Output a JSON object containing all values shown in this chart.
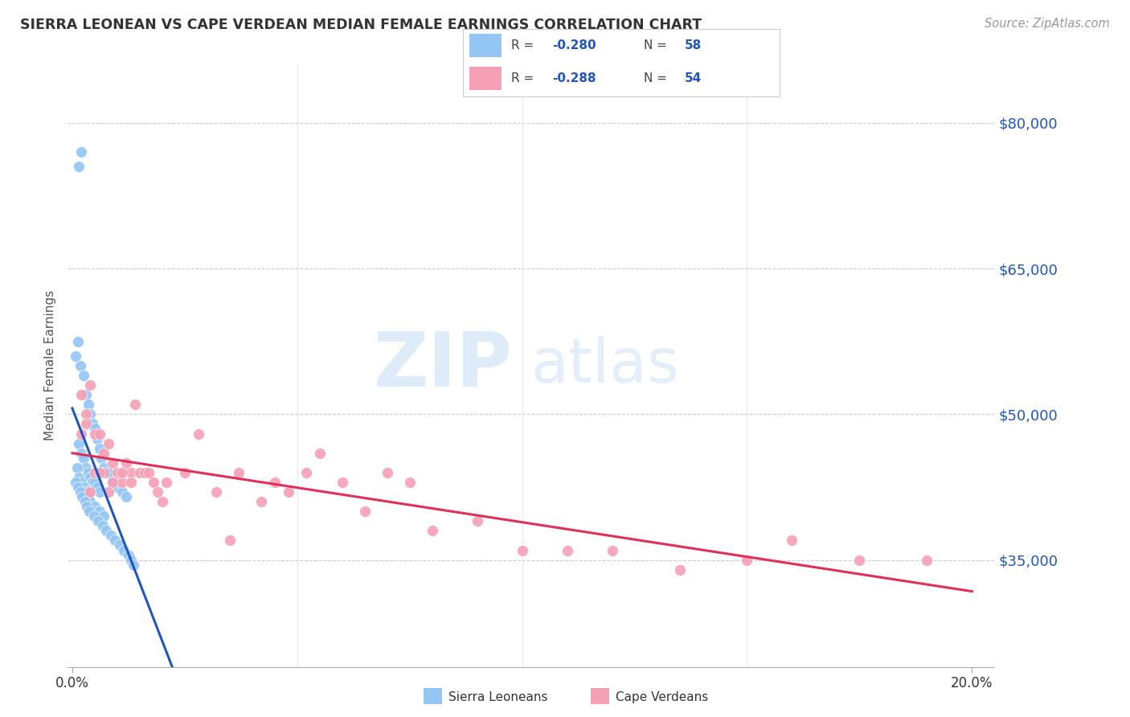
{
  "title": "SIERRA LEONEAN VS CAPE VERDEAN MEDIAN FEMALE EARNINGS CORRELATION CHART",
  "source": "Source: ZipAtlas.com",
  "ylabel": "Median Female Earnings",
  "ytick_labels": [
    "$35,000",
    "$50,000",
    "$65,000",
    "$80,000"
  ],
  "ytick_values": [
    35000,
    50000,
    65000,
    80000
  ],
  "y_min": 24000,
  "y_max": 86000,
  "x_min": -0.001,
  "x_max": 0.205,
  "blue_color": "#93c6f5",
  "pink_color": "#f5a0b5",
  "blue_line_color": "#2255bb",
  "pink_line_color": "#e0305a",
  "trend_dash_color": "#a8cff0",
  "sl_x": [
    0.0015,
    0.002,
    0.0008,
    0.0012,
    0.0018,
    0.0025,
    0.003,
    0.0035,
    0.004,
    0.0045,
    0.005,
    0.0055,
    0.006,
    0.0065,
    0.007,
    0.008,
    0.009,
    0.01,
    0.011,
    0.012,
    0.0015,
    0.002,
    0.0025,
    0.003,
    0.0035,
    0.004,
    0.0045,
    0.005,
    0.0055,
    0.006,
    0.001,
    0.0015,
    0.002,
    0.0025,
    0.003,
    0.0035,
    0.004,
    0.005,
    0.006,
    0.007,
    0.0008,
    0.0012,
    0.0018,
    0.0022,
    0.0028,
    0.0032,
    0.0038,
    0.0048,
    0.0058,
    0.0068,
    0.0075,
    0.0085,
    0.0095,
    0.0105,
    0.0115,
    0.0125,
    0.013,
    0.0135
  ],
  "sl_y": [
    75500,
    77000,
    56000,
    57500,
    55000,
    54000,
    52000,
    51000,
    50000,
    49000,
    48500,
    47500,
    46500,
    45500,
    44500,
    44000,
    43000,
    42500,
    42000,
    41500,
    47000,
    46000,
    45500,
    44500,
    44000,
    43500,
    43000,
    43000,
    42500,
    42000,
    44500,
    43500,
    43000,
    42500,
    42000,
    41500,
    41000,
    40500,
    40000,
    39500,
    43000,
    42500,
    42000,
    41500,
    41000,
    40500,
    40000,
    39500,
    39000,
    38500,
    38000,
    37500,
    37000,
    36500,
    36000,
    35500,
    35000,
    34500
  ],
  "cv_x": [
    0.002,
    0.003,
    0.004,
    0.005,
    0.006,
    0.007,
    0.008,
    0.009,
    0.01,
    0.011,
    0.012,
    0.013,
    0.014,
    0.015,
    0.016,
    0.017,
    0.018,
    0.019,
    0.02,
    0.021,
    0.003,
    0.005,
    0.007,
    0.009,
    0.011,
    0.013,
    0.002,
    0.004,
    0.006,
    0.008,
    0.025,
    0.028,
    0.032,
    0.037,
    0.042,
    0.048,
    0.052,
    0.06,
    0.065,
    0.07,
    0.08,
    0.09,
    0.1,
    0.11,
    0.12,
    0.135,
    0.15,
    0.16,
    0.175,
    0.19,
    0.035,
    0.055,
    0.045,
    0.075
  ],
  "cv_y": [
    52000,
    50000,
    53000,
    48000,
    48000,
    46000,
    47000,
    45000,
    44000,
    43000,
    45000,
    44000,
    51000,
    44000,
    44000,
    44000,
    43000,
    42000,
    41000,
    43000,
    49000,
    44000,
    44000,
    43000,
    44000,
    43000,
    48000,
    42000,
    44000,
    42000,
    44000,
    48000,
    42000,
    44000,
    41000,
    42000,
    44000,
    43000,
    40000,
    44000,
    38000,
    39000,
    36000,
    36000,
    36000,
    34000,
    35000,
    37000,
    35000,
    35000,
    37000,
    46000,
    43000,
    43000
  ]
}
